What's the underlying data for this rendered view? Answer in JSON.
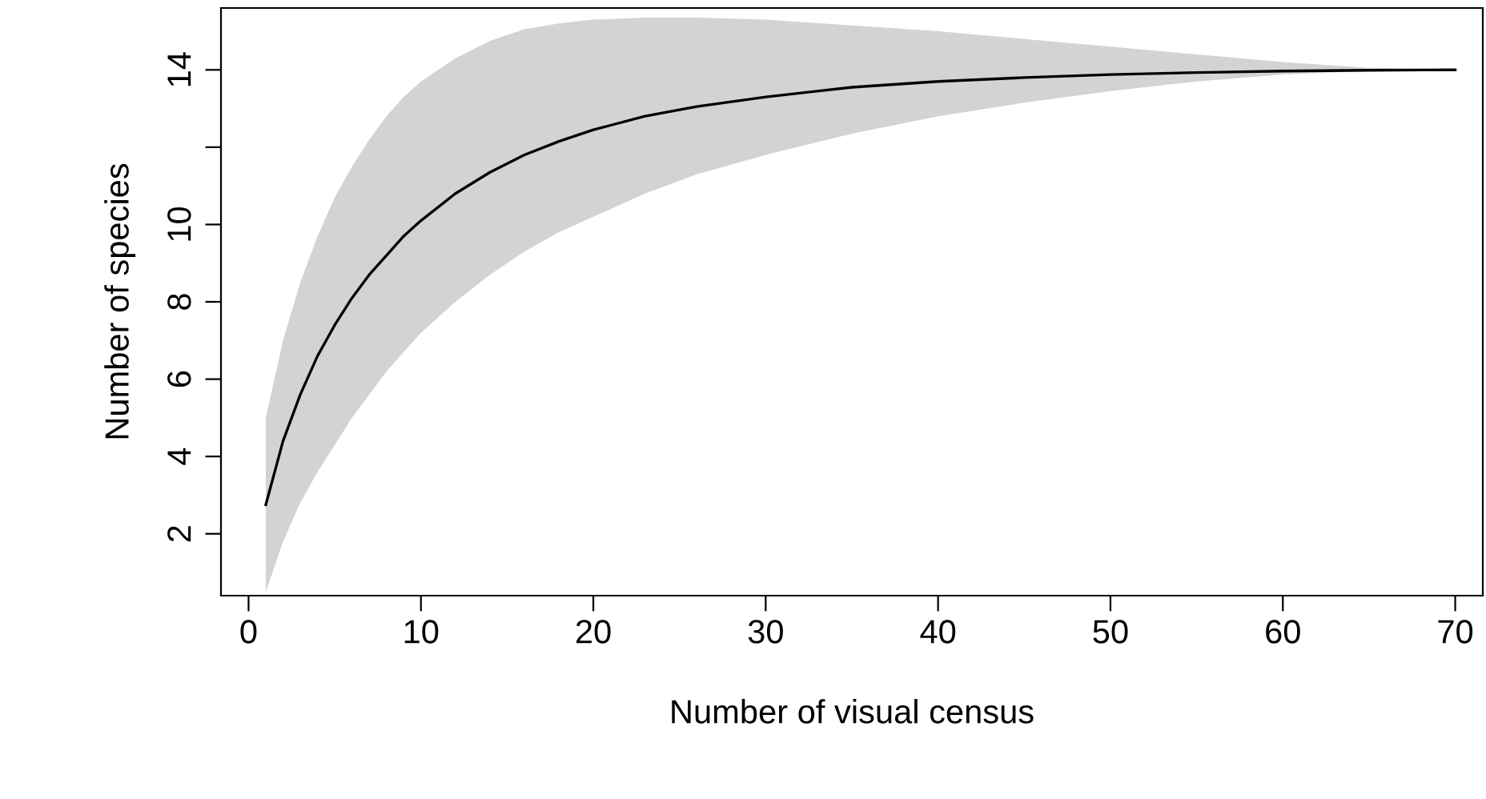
{
  "chart_data": {
    "type": "line",
    "xlabel": "Number of visual census",
    "ylabel": "Number of species",
    "x": [
      1,
      2,
      3,
      4,
      5,
      6,
      7,
      8,
      9,
      10,
      12,
      14,
      16,
      18,
      20,
      23,
      26,
      30,
      35,
      40,
      45,
      50,
      55,
      60,
      65,
      70
    ],
    "series": [
      {
        "color": "#000000",
        "values": [
          2.75,
          4.4,
          5.6,
          6.6,
          7.4,
          8.1,
          8.7,
          9.2,
          9.7,
          10.1,
          10.8,
          11.35,
          11.8,
          12.15,
          12.45,
          12.8,
          13.05,
          13.3,
          13.55,
          13.7,
          13.8,
          13.88,
          13.93,
          13.97,
          13.99,
          14
        ],
        "lower": [
          0.5,
          1.8,
          2.8,
          3.6,
          4.3,
          5.0,
          5.6,
          6.2,
          6.7,
          7.2,
          8.0,
          8.7,
          9.3,
          9.8,
          10.2,
          10.8,
          11.3,
          11.8,
          12.35,
          12.8,
          13.15,
          13.45,
          13.7,
          13.88,
          13.97,
          14
        ],
        "upper": [
          5.0,
          7.0,
          8.5,
          9.7,
          10.7,
          11.5,
          12.2,
          12.8,
          13.3,
          13.7,
          14.3,
          14.75,
          15.05,
          15.2,
          15.3,
          15.35,
          15.35,
          15.3,
          15.15,
          15.0,
          14.8,
          14.6,
          14.4,
          14.2,
          14.05,
          14
        ]
      }
    ],
    "xlim": [
      -1.6,
      71.6
    ],
    "ylim": [
      0.4,
      15.6
    ],
    "xticks": [
      0,
      10,
      20,
      30,
      40,
      50,
      60,
      70
    ],
    "yticks": [
      2,
      4,
      6,
      8,
      10,
      {
        "value": 12,
        "label": null
      },
      14
    ],
    "grid": false,
    "legend": false,
    "marker": "none",
    "line_style": "solid"
  }
}
